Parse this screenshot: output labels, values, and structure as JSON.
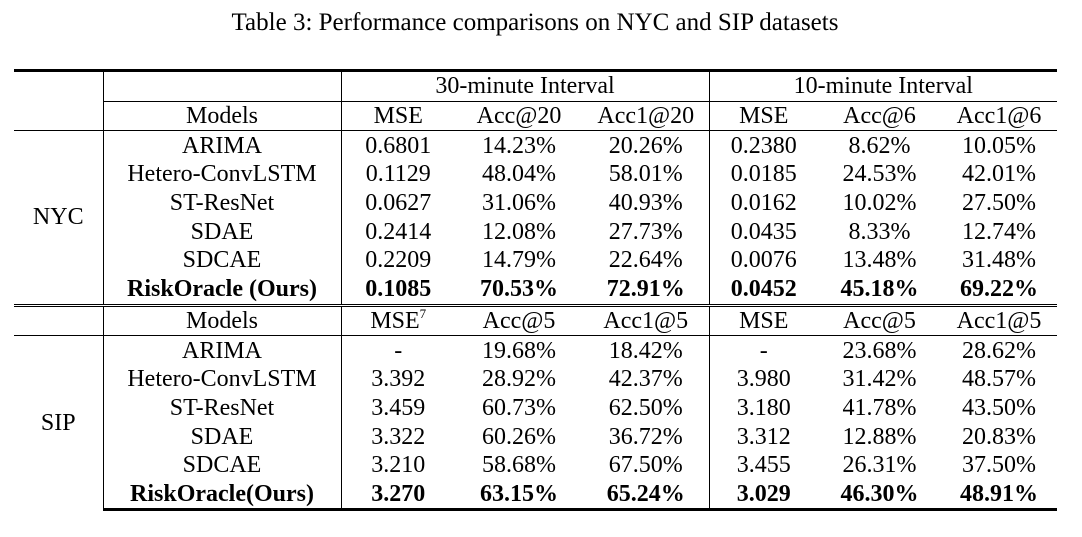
{
  "caption": "Table 3: Performance comparisons on NYC and SIP datasets",
  "header": {
    "interval_30": "30-minute Interval",
    "interval_10": "10-minute Interval"
  },
  "nyc": {
    "dataset": "NYC",
    "columns": {
      "models": "Models",
      "c1": "MSE",
      "c2": "Acc@20",
      "c3": "Acc1@20",
      "c4": "MSE",
      "c5": "Acc@6",
      "c6": "Acc1@6"
    },
    "rows": [
      [
        "ARIMA",
        "0.6801",
        "14.23%",
        "20.26%",
        "0.2380",
        "8.62%",
        "10.05%"
      ],
      [
        "Hetero-ConvLSTM",
        "0.1129",
        "48.04%",
        "58.01%",
        "0.0185",
        "24.53%",
        "42.01%"
      ],
      [
        "ST-ResNet",
        "0.0627",
        "31.06%",
        "40.93%",
        "0.0162",
        "10.02%",
        "27.50%"
      ],
      [
        "SDAE",
        "0.2414",
        "12.08%",
        "27.73%",
        "0.0435",
        "8.33%",
        "12.74%"
      ],
      [
        "SDCAE",
        "0.2209",
        "14.79%",
        "22.64%",
        "0.0076",
        "13.48%",
        "31.48%"
      ],
      [
        "RiskOracle (Ours)",
        "0.1085",
        "70.53%",
        "72.91%",
        "0.0452",
        "45.18%",
        "69.22%"
      ]
    ]
  },
  "sip": {
    "dataset": "SIP",
    "columns": {
      "models": "Models",
      "c1": "MSE",
      "c1_sup": "7",
      "c2": "Acc@5",
      "c3": "Acc1@5",
      "c4": "MSE",
      "c5": "Acc@5",
      "c6": "Acc1@5"
    },
    "rows": [
      [
        "ARIMA",
        "-",
        "19.68%",
        "18.42%",
        "-",
        "23.68%",
        "28.62%"
      ],
      [
        "Hetero-ConvLSTM",
        "3.392",
        "28.92%",
        "42.37%",
        "3.980",
        "31.42%",
        "48.57%"
      ],
      [
        "ST-ResNet",
        "3.459",
        "60.73%",
        "62.50%",
        "3.180",
        "41.78%",
        "43.50%"
      ],
      [
        "SDAE",
        "3.322",
        "60.26%",
        "36.72%",
        "3.312",
        "12.88%",
        "20.83%"
      ],
      [
        "SDCAE",
        "3.210",
        "58.68%",
        "67.50%",
        "3.455",
        "26.31%",
        "37.50%"
      ],
      [
        "RiskOracle(Ours)",
        "3.270",
        "63.15%",
        "65.24%",
        "3.029",
        "46.30%",
        "48.91%"
      ]
    ]
  }
}
